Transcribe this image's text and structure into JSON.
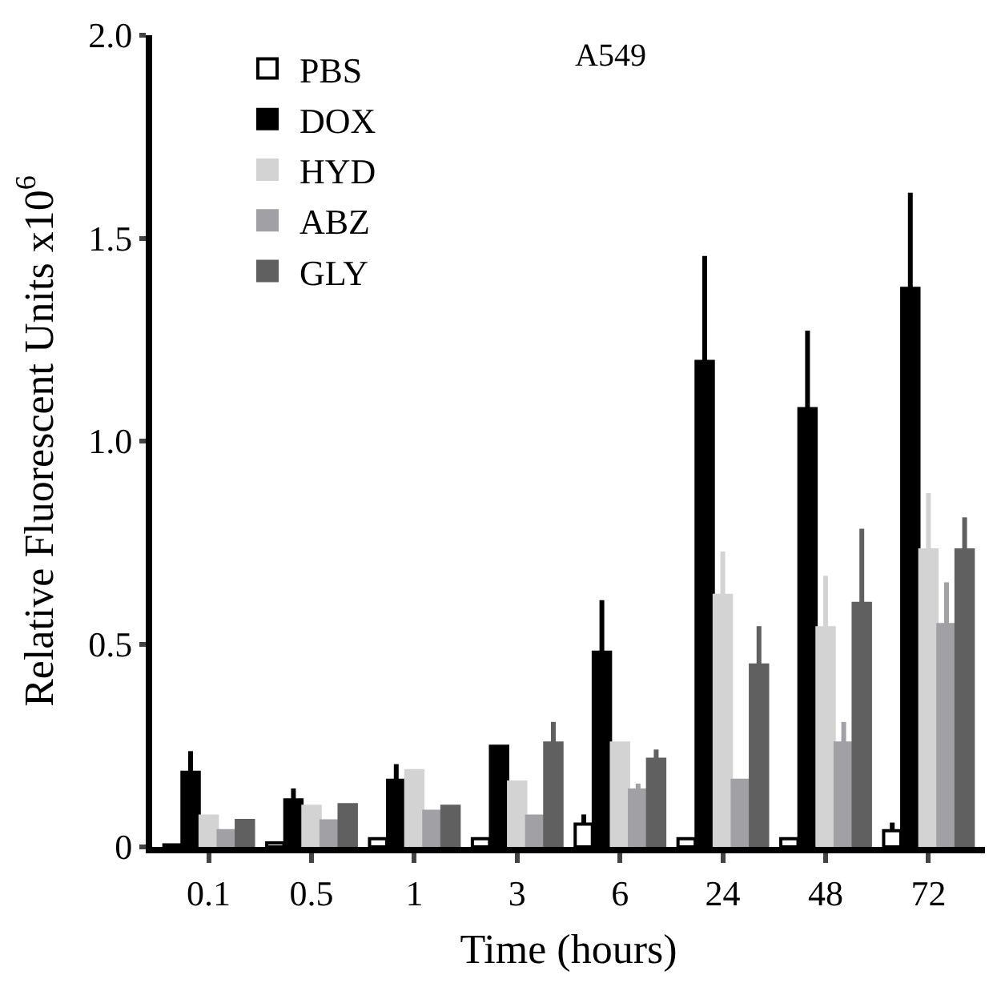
{
  "chart_data": {
    "type": "bar",
    "title": "A549",
    "xlabel": "Time (hours)",
    "ylabel": "Relative Fluorescent Units x10$^{6}$",
    "categories": [
      "0.1",
      "0.5",
      "1",
      "3",
      "6",
      "24",
      "48",
      "72"
    ],
    "series": [
      {
        "name": "PBS",
        "color": "#ffffff",
        "values": [
          0.005,
          0.01,
          0.02,
          0.02,
          0.056,
          0.02,
          0.02,
          0.04
        ],
        "errors": [
          null,
          null,
          null,
          null,
          [
            0.056,
            0.08
          ],
          null,
          null,
          [
            0.04,
            0.06
          ]
        ]
      },
      {
        "name": "DOX",
        "color": "#000000",
        "values": [
          0.184,
          0.116,
          0.164,
          0.248,
          0.48,
          1.196,
          1.08,
          1.376
        ],
        "errors": [
          [
            0.184,
            0.236
          ],
          [
            0.116,
            0.144
          ],
          [
            0.164,
            0.204
          ],
          null,
          [
            0.48,
            0.608
          ],
          [
            1.196,
            1.456
          ],
          [
            1.08,
            1.272
          ],
          [
            1.376,
            1.612
          ]
        ]
      },
      {
        "name": "HYD",
        "color": "#d3d3d3",
        "values": [
          0.076,
          0.1,
          0.188,
          0.16,
          0.256,
          0.62,
          0.54,
          0.732
        ],
        "errors": [
          null,
          null,
          null,
          null,
          null,
          [
            0.62,
            0.728
          ],
          [
            0.54,
            0.668
          ],
          [
            0.732,
            0.872
          ]
        ]
      },
      {
        "name": "ABZ",
        "color": "#a0a0a5",
        "values": [
          0.04,
          0.064,
          0.088,
          0.076,
          0.14,
          0.164,
          0.256,
          0.548
        ],
        "errors": [
          null,
          null,
          null,
          null,
          [
            0.14,
            0.156
          ],
          null,
          [
            0.256,
            0.308
          ],
          [
            0.548,
            0.652
          ]
        ]
      },
      {
        "name": "GLY",
        "color": "#606060",
        "values": [
          0.065,
          0.104,
          0.1,
          0.256,
          0.216,
          0.448,
          0.6,
          0.732
        ],
        "errors": [
          null,
          null,
          null,
          [
            0.256,
            0.308
          ],
          [
            0.216,
            0.24
          ],
          [
            0.448,
            0.544
          ],
          [
            0.6,
            0.784
          ],
          [
            0.732,
            0.812
          ]
        ]
      }
    ],
    "ylim": [
      0,
      2.0
    ],
    "yticks": [
      0,
      0.5,
      {
        "value": 1.0,
        "label": "1.0"
      },
      1.5,
      {
        "value": 2.0,
        "label": "2.0"
      }
    ],
    "legend": "top left"
  }
}
